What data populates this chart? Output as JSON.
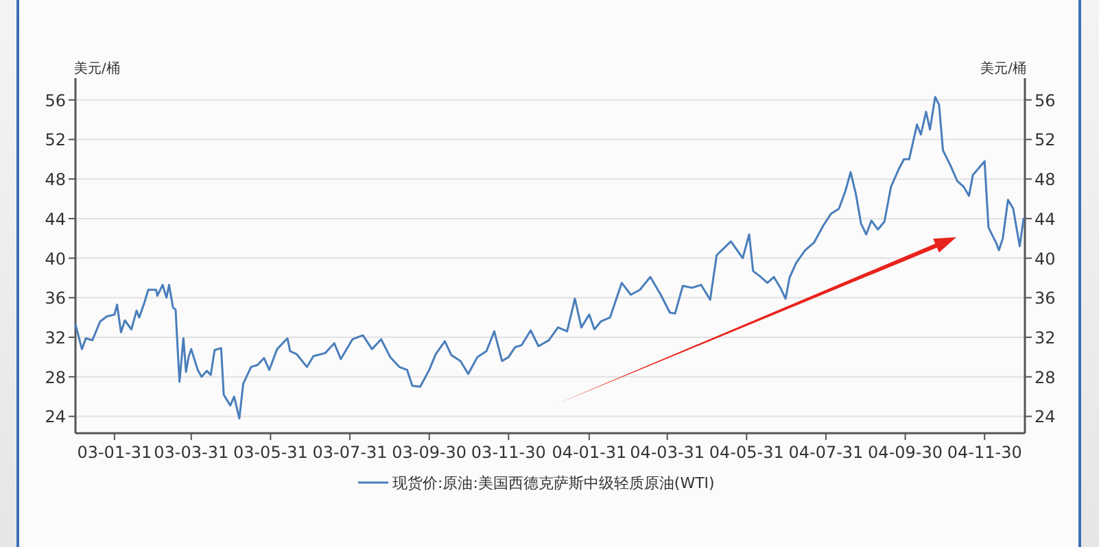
{
  "chart_data": {
    "type": "line",
    "ylabel": "美元/桶",
    "y2label": "美元/桶",
    "xlim": [
      "2003-01-01",
      "2004-12-31"
    ],
    "xticks": [
      {
        "value": "2003-01-31",
        "label": "03-01-31"
      },
      {
        "value": "2003-03-31",
        "label": "03-03-31"
      },
      {
        "value": "2003-05-31",
        "label": "03-05-31"
      },
      {
        "value": "2003-07-31",
        "label": "03-07-31"
      },
      {
        "value": "2003-09-30",
        "label": "03-09-30"
      },
      {
        "value": "2003-11-30",
        "label": "03-11-30"
      },
      {
        "value": "2004-01-31",
        "label": "04-01-31"
      },
      {
        "value": "2004-03-31",
        "label": "04-03-31"
      },
      {
        "value": "2004-05-31",
        "label": "04-05-31"
      },
      {
        "value": "2004-07-31",
        "label": "04-07-31"
      },
      {
        "value": "2004-09-30",
        "label": "04-09-30"
      },
      {
        "value": "2004-11-30",
        "label": "04-11-30"
      }
    ],
    "ylim": [
      22.3,
      58.2
    ],
    "yticks": [
      24,
      28,
      32,
      36,
      40,
      44,
      48,
      52,
      56
    ],
    "y2lim": [
      22.3,
      58.2
    ],
    "y2ticks": [
      24,
      28,
      32,
      36,
      40,
      44,
      48,
      52,
      56
    ],
    "grid": "y",
    "legend": "bottom",
    "marker": "none",
    "line_style": "solid",
    "series": [
      {
        "name": "现货价:原油:美国西德克萨斯中级轻质原油(WTI)",
        "color": "#4a7ebb",
        "x": [
          "2003-01-01",
          "2003-01-06",
          "2003-01-09",
          "2003-01-14",
          "2003-01-20",
          "2003-01-25",
          "2003-01-31",
          "2003-02-02",
          "2003-02-05",
          "2003-02-08",
          "2003-02-13",
          "2003-02-17",
          "2003-02-19",
          "2003-02-23",
          "2003-02-26",
          "2003-03-04",
          "2003-03-05",
          "2003-03-09",
          "2003-03-12",
          "2003-03-14",
          "2003-03-17",
          "2003-03-19",
          "2003-03-21",
          "2003-03-22",
          "2003-03-25",
          "2003-03-27",
          "2003-03-29",
          "2003-03-31",
          "2003-04-05",
          "2003-04-08",
          "2003-04-12",
          "2003-04-15",
          "2003-04-18",
          "2003-04-23",
          "2003-04-25",
          "2003-04-30",
          "2003-05-03",
          "2003-05-07",
          "2003-05-10",
          "2003-05-16",
          "2003-05-21",
          "2003-05-26",
          "2003-05-30",
          "2003-06-05",
          "2003-06-13",
          "2003-06-15",
          "2003-06-20",
          "2003-06-28",
          "2003-07-03",
          "2003-07-12",
          "2003-07-19",
          "2003-07-24",
          "2003-08-02",
          "2003-08-10",
          "2003-08-17",
          "2003-08-24",
          "2003-08-31",
          "2003-09-07",
          "2003-09-13",
          "2003-09-17",
          "2003-09-23",
          "2003-09-30",
          "2003-10-05",
          "2003-10-12",
          "2003-10-17",
          "2003-10-24",
          "2003-10-30",
          "2003-11-06",
          "2003-11-13",
          "2003-11-19",
          "2003-11-25",
          "2003-11-30",
          "2003-12-05",
          "2003-12-10",
          "2003-12-17",
          "2003-12-23",
          "2003-12-31",
          "2004-01-07",
          "2004-01-14",
          "2004-01-20",
          "2004-01-25",
          "2004-01-31",
          "2004-02-04",
          "2004-02-09",
          "2004-02-16",
          "2004-02-25",
          "2004-03-03",
          "2004-03-10",
          "2004-03-18",
          "2004-03-26",
          "2004-04-02",
          "2004-04-06",
          "2004-04-12",
          "2004-04-19",
          "2004-04-26",
          "2004-05-03",
          "2004-05-08",
          "2004-05-19",
          "2004-05-28",
          "2004-06-02",
          "2004-06-05",
          "2004-06-10",
          "2004-06-16",
          "2004-06-21",
          "2004-06-26",
          "2004-06-30",
          "2004-07-03",
          "2004-07-08",
          "2004-07-15",
          "2004-07-22",
          "2004-07-29",
          "2004-08-04",
          "2004-08-10",
          "2004-08-15",
          "2004-08-19",
          "2004-08-23",
          "2004-08-27",
          "2004-08-31",
          "2004-09-04",
          "2004-09-09",
          "2004-09-14",
          "2004-09-19",
          "2004-09-25",
          "2004-09-29",
          "2004-10-03",
          "2004-10-09",
          "2004-10-12",
          "2004-10-16",
          "2004-10-19",
          "2004-10-23",
          "2004-10-26",
          "2004-10-29",
          "2004-11-04",
          "2004-11-09",
          "2004-11-14",
          "2004-11-18",
          "2004-11-21",
          "2004-11-30",
          "2004-12-03",
          "2004-12-09",
          "2004-12-11",
          "2004-12-14",
          "2004-12-18",
          "2004-12-22",
          "2004-12-27",
          "2004-12-30"
        ],
        "values": [
          33.3,
          30.8,
          31.9,
          31.7,
          33.6,
          34.1,
          34.3,
          35.3,
          32.5,
          33.7,
          32.8,
          34.7,
          34.0,
          35.5,
          36.8,
          36.8,
          36.2,
          37.3,
          36.0,
          37.3,
          35.0,
          34.8,
          29.8,
          27.5,
          31.9,
          28.5,
          30.0,
          30.8,
          28.7,
          28.0,
          28.6,
          28.2,
          30.7,
          30.9,
          26.2,
          25.1,
          26.0,
          23.8,
          27.3,
          29.0,
          29.2,
          29.9,
          28.7,
          30.8,
          31.9,
          30.6,
          30.3,
          29.0,
          30.1,
          30.4,
          31.4,
          29.8,
          31.8,
          32.2,
          30.8,
          31.8,
          30.0,
          29.0,
          28.7,
          27.1,
          27.0,
          28.7,
          30.3,
          31.6,
          30.2,
          29.6,
          28.3,
          30.0,
          30.6,
          32.6,
          29.6,
          30.0,
          31.0,
          31.2,
          32.7,
          31.1,
          31.7,
          33.0,
          32.6,
          35.9,
          33.0,
          34.3,
          32.8,
          33.6,
          34.0,
          37.5,
          36.3,
          36.8,
          38.1,
          36.3,
          34.5,
          34.4,
          37.2,
          37.0,
          37.3,
          35.8,
          40.3,
          41.7,
          40.0,
          42.4,
          38.7,
          38.2,
          37.5,
          38.1,
          37.0,
          35.9,
          38.0,
          39.5,
          40.8,
          41.6,
          43.3,
          44.5,
          45.0,
          46.8,
          48.7,
          46.5,
          43.5,
          42.4,
          43.8,
          42.9,
          43.7,
          47.2,
          49.0,
          50.0,
          50.0,
          53.5,
          52.5,
          54.8,
          53.0,
          56.3,
          55.5,
          50.9,
          49.3,
          47.8,
          47.2,
          46.3,
          48.4,
          49.8,
          43.1,
          41.5,
          40.8,
          42.0,
          45.9,
          45.0,
          41.2,
          44.0
        ]
      }
    ]
  }
}
